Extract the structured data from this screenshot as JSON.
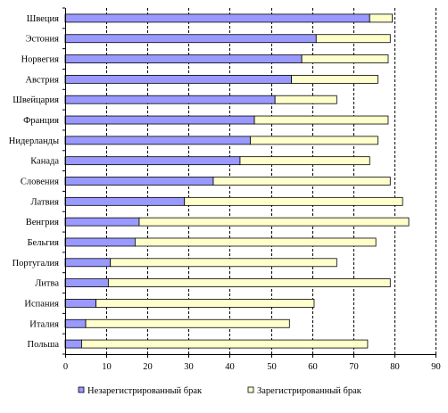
{
  "chart_data": {
    "type": "bar",
    "orientation": "horizontal",
    "stacked": true,
    "title": "",
    "xlabel": "",
    "ylabel": "",
    "xlim": [
      0,
      90
    ],
    "x_ticks": [
      0,
      10,
      20,
      30,
      40,
      50,
      60,
      70,
      80,
      90
    ],
    "grid": "vertical dashed",
    "legend_position": "bottom",
    "categories": [
      "Швеция",
      "Эстония",
      "Норвегия",
      "Австрия",
      "Швейцария",
      "Франция",
      "Нидерланды",
      "Канада",
      "Словения",
      "Латвия",
      "Венгрия",
      "Бельгия",
      "Португалия",
      "Литва",
      "Испания",
      "Италия",
      "Польша"
    ],
    "series": [
      {
        "name": "Незарегистрированный брак",
        "color": "#9999ff",
        "values": [
          74,
          61,
          57.5,
          55,
          51,
          46,
          45,
          42.5,
          36,
          29,
          18,
          17,
          11,
          10.5,
          7.5,
          5,
          4
        ]
      },
      {
        "name": "Зарегистрированный брак",
        "color": "#ffffcc",
        "values": [
          5.5,
          18,
          21,
          21,
          15,
          32.5,
          31,
          31.5,
          43,
          53,
          65.5,
          58.5,
          55,
          68.5,
          53,
          49.5,
          69.5
        ]
      }
    ]
  }
}
